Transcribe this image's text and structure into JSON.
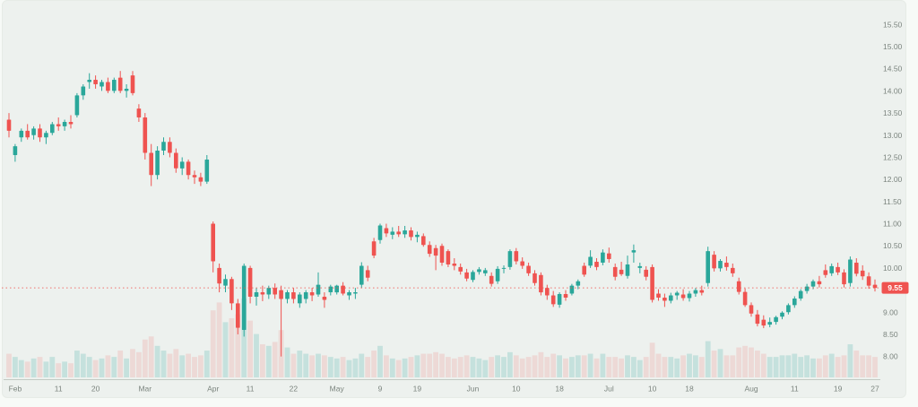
{
  "chart_data": {
    "type": "candlestick",
    "title": "",
    "legend_position": "none",
    "grid": false,
    "current_price": 9.55,
    "current_price_label": "9.55",
    "y_axis": {
      "side": "right",
      "min": 7.75,
      "max": 15.75,
      "ticks": [
        "15.50",
        "15.00",
        "14.50",
        "14.00",
        "13.50",
        "13.00",
        "12.50",
        "12.00",
        "11.50",
        "11.00",
        "10.50",
        "10.00",
        "9.00",
        "8.50",
        "8.00"
      ]
    },
    "x_axis": {
      "side": "bottom",
      "ticks": [
        {
          "label": "Feb",
          "i": 1
        },
        {
          "label": "11",
          "i": 8
        },
        {
          "label": "20",
          "i": 14
        },
        {
          "label": "Mar",
          "i": 22
        },
        {
          "label": "Apr",
          "i": 33
        },
        {
          "label": "11",
          "i": 39
        },
        {
          "label": "22",
          "i": 46
        },
        {
          "label": "May",
          "i": 53
        },
        {
          "label": "9",
          "i": 60
        },
        {
          "label": "19",
          "i": 66
        },
        {
          "label": "Jun",
          "i": 75
        },
        {
          "label": "10",
          "i": 82
        },
        {
          "label": "18",
          "i": 89
        },
        {
          "label": "Jul",
          "i": 97
        },
        {
          "label": "10",
          "i": 104
        },
        {
          "label": "18",
          "i": 110
        },
        {
          "label": "Aug",
          "i": 120
        },
        {
          "label": "11",
          "i": 127
        },
        {
          "label": "19",
          "i": 134
        },
        {
          "label": "27",
          "i": 140
        }
      ]
    },
    "series_name": "price",
    "candles_format": [
      "open",
      "high",
      "low",
      "close",
      "relative_volume"
    ],
    "candles": [
      [
        13.35,
        13.5,
        12.95,
        13.1,
        0.3
      ],
      [
        12.55,
        12.8,
        12.4,
        12.75,
        0.26
      ],
      [
        12.95,
        13.15,
        12.85,
        13.1,
        0.22
      ],
      [
        13.1,
        13.25,
        12.9,
        12.95,
        0.2
      ],
      [
        13.0,
        13.2,
        12.9,
        13.15,
        0.24
      ],
      [
        13.15,
        13.25,
        12.85,
        12.95,
        0.26
      ],
      [
        12.95,
        13.1,
        12.8,
        13.05,
        0.2
      ],
      [
        13.05,
        13.3,
        13.0,
        13.25,
        0.26
      ],
      [
        13.25,
        13.4,
        13.1,
        13.2,
        0.18
      ],
      [
        13.2,
        13.35,
        13.1,
        13.3,
        0.2
      ],
      [
        13.3,
        13.45,
        13.15,
        13.25,
        0.18
      ],
      [
        13.45,
        13.95,
        13.4,
        13.9,
        0.34
      ],
      [
        13.9,
        14.15,
        13.8,
        14.1,
        0.3
      ],
      [
        14.2,
        14.4,
        14.05,
        14.25,
        0.26
      ],
      [
        14.25,
        14.35,
        14.05,
        14.15,
        0.22
      ],
      [
        14.1,
        14.25,
        14.0,
        14.2,
        0.24
      ],
      [
        14.2,
        14.3,
        13.95,
        14.0,
        0.28
      ],
      [
        14.0,
        14.3,
        13.95,
        14.25,
        0.26
      ],
      [
        14.3,
        14.45,
        13.95,
        14.0,
        0.34
      ],
      [
        14.0,
        14.15,
        13.85,
        14.05,
        0.24
      ],
      [
        14.35,
        14.45,
        13.9,
        13.95,
        0.36
      ],
      [
        13.6,
        13.7,
        13.3,
        13.4,
        0.32
      ],
      [
        13.4,
        13.5,
        12.45,
        12.6,
        0.48
      ],
      [
        12.6,
        12.8,
        11.85,
        12.1,
        0.52
      ],
      [
        12.1,
        12.75,
        12.0,
        12.65,
        0.4
      ],
      [
        12.65,
        12.95,
        12.55,
        12.85,
        0.34
      ],
      [
        12.85,
        12.95,
        12.5,
        12.6,
        0.3
      ],
      [
        12.6,
        12.7,
        12.15,
        12.25,
        0.36
      ],
      [
        12.25,
        12.5,
        12.1,
        12.4,
        0.28
      ],
      [
        12.4,
        12.45,
        12.0,
        12.1,
        0.3
      ],
      [
        12.1,
        12.2,
        11.9,
        12.05,
        0.26
      ],
      [
        12.05,
        12.15,
        11.85,
        11.95,
        0.28
      ],
      [
        11.95,
        12.55,
        11.9,
        12.45,
        0.34
      ],
      [
        11.0,
        11.05,
        9.9,
        10.15,
        0.85
      ],
      [
        10.0,
        10.1,
        9.45,
        9.65,
        0.95
      ],
      [
        9.6,
        9.85,
        9.45,
        9.75,
        0.7
      ],
      [
        9.75,
        9.8,
        9.05,
        9.2,
        0.75
      ],
      [
        9.2,
        9.3,
        8.5,
        8.65,
        0.8
      ],
      [
        8.6,
        10.1,
        8.45,
        10.05,
        1.0
      ],
      [
        10.0,
        10.05,
        9.2,
        9.35,
        0.72
      ],
      [
        9.35,
        9.55,
        9.15,
        9.45,
        0.55
      ],
      [
        9.45,
        9.6,
        9.25,
        9.4,
        0.42
      ],
      [
        9.4,
        9.6,
        9.3,
        9.55,
        0.4
      ],
      [
        9.55,
        9.65,
        9.3,
        9.4,
        0.45
      ],
      [
        9.5,
        9.6,
        8.0,
        9.3,
        0.6
      ],
      [
        9.3,
        9.5,
        9.2,
        9.45,
        0.38
      ],
      [
        9.45,
        9.55,
        9.2,
        9.3,
        0.3
      ],
      [
        9.2,
        9.45,
        9.1,
        9.4,
        0.34
      ],
      [
        9.3,
        9.5,
        9.2,
        9.45,
        0.3
      ],
      [
        9.45,
        9.55,
        9.25,
        9.38,
        0.28
      ],
      [
        9.4,
        9.9,
        9.35,
        9.62,
        0.3
      ],
      [
        9.35,
        9.45,
        9.1,
        9.28,
        0.28
      ],
      [
        9.45,
        9.62,
        9.38,
        9.58,
        0.26
      ],
      [
        9.45,
        9.62,
        9.4,
        9.6,
        0.24
      ],
      [
        9.6,
        9.68,
        9.38,
        9.42,
        0.26
      ],
      [
        9.38,
        9.5,
        9.28,
        9.45,
        0.22
      ],
      [
        9.42,
        9.55,
        9.3,
        9.45,
        0.24
      ],
      [
        9.62,
        10.13,
        9.55,
        10.05,
        0.3
      ],
      [
        9.95,
        10.05,
        9.7,
        9.78,
        0.26
      ],
      [
        10.6,
        10.68,
        10.22,
        10.28,
        0.34
      ],
      [
        10.63,
        11.0,
        10.55,
        10.96,
        0.4
      ],
      [
        10.9,
        11.0,
        10.7,
        10.78,
        0.28
      ],
      [
        10.75,
        10.92,
        10.65,
        10.82,
        0.24
      ],
      [
        10.82,
        10.95,
        10.7,
        10.76,
        0.22
      ],
      [
        10.76,
        10.95,
        10.68,
        10.85,
        0.24
      ],
      [
        10.85,
        10.92,
        10.62,
        10.7,
        0.26
      ],
      [
        10.7,
        10.82,
        10.58,
        10.75,
        0.28
      ],
      [
        10.72,
        10.78,
        10.48,
        10.52,
        0.3
      ],
      [
        10.52,
        10.6,
        10.25,
        10.32,
        0.3
      ],
      [
        10.45,
        10.52,
        9.95,
        10.28,
        0.32
      ],
      [
        10.5,
        10.55,
        10.05,
        10.12,
        0.3
      ],
      [
        10.38,
        10.42,
        10.02,
        10.08,
        0.26
      ],
      [
        10.1,
        10.22,
        9.95,
        10.05,
        0.24
      ],
      [
        10.02,
        10.1,
        9.85,
        9.92,
        0.26
      ],
      [
        9.9,
        9.98,
        9.7,
        9.76,
        0.28
      ],
      [
        9.73,
        9.95,
        9.68,
        9.91,
        0.26
      ],
      [
        9.91,
        10.02,
        9.85,
        9.97,
        0.24
      ],
      [
        9.88,
        10.0,
        9.82,
        9.95,
        0.22
      ],
      [
        9.82,
        9.9,
        9.58,
        9.64,
        0.26
      ],
      [
        9.7,
        10.04,
        9.64,
        9.98,
        0.28
      ],
      [
        9.98,
        10.06,
        9.88,
        10.0,
        0.26
      ],
      [
        10.02,
        10.42,
        9.96,
        10.38,
        0.32
      ],
      [
        10.38,
        10.45,
        10.08,
        10.15,
        0.28
      ],
      [
        10.15,
        10.24,
        9.98,
        10.05,
        0.24
      ],
      [
        10.05,
        10.12,
        9.82,
        9.88,
        0.26
      ],
      [
        9.88,
        9.95,
        9.6,
        9.66,
        0.28
      ],
      [
        9.84,
        9.9,
        9.38,
        9.45,
        0.32
      ],
      [
        9.55,
        9.62,
        9.28,
        9.38,
        0.26
      ],
      [
        9.38,
        9.48,
        9.12,
        9.18,
        0.3
      ],
      [
        9.17,
        9.45,
        9.1,
        9.41,
        0.28
      ],
      [
        9.41,
        9.5,
        9.26,
        9.33,
        0.24
      ],
      [
        9.42,
        9.64,
        9.38,
        9.6,
        0.26
      ],
      [
        9.6,
        9.74,
        9.52,
        9.7,
        0.28
      ],
      [
        10.05,
        10.12,
        9.8,
        9.85,
        0.28
      ],
      [
        10.05,
        10.4,
        10.0,
        10.25,
        0.3
      ],
      [
        10.14,
        10.22,
        9.95,
        10.02,
        0.24
      ],
      [
        10.12,
        10.42,
        10.06,
        10.35,
        0.3
      ],
      [
        10.33,
        10.46,
        10.12,
        10.2,
        0.26
      ],
      [
        10.02,
        10.1,
        9.72,
        9.8,
        0.26
      ],
      [
        9.96,
        10.14,
        9.82,
        9.86,
        0.24
      ],
      [
        9.82,
        10.28,
        9.76,
        10.08,
        0.28
      ],
      [
        10.35,
        10.53,
        10.12,
        10.4,
        0.26
      ],
      [
        10.0,
        10.12,
        9.88,
        10.04,
        0.22
      ],
      [
        9.96,
        10.04,
        9.72,
        9.8,
        0.26
      ],
      [
        10.02,
        10.08,
        9.22,
        9.28,
        0.44
      ],
      [
        9.42,
        9.52,
        9.26,
        9.33,
        0.3
      ],
      [
        9.33,
        9.42,
        9.12,
        9.26,
        0.26
      ],
      [
        9.26,
        9.44,
        9.2,
        9.38,
        0.26
      ],
      [
        9.38,
        9.48,
        9.28,
        9.44,
        0.24
      ],
      [
        9.4,
        9.52,
        9.26,
        9.32,
        0.28
      ],
      [
        9.32,
        9.48,
        9.24,
        9.42,
        0.3
      ],
      [
        9.42,
        9.55,
        9.35,
        9.5,
        0.28
      ],
      [
        9.5,
        9.6,
        9.38,
        9.44,
        0.26
      ],
      [
        9.66,
        10.48,
        9.58,
        10.38,
        0.46
      ],
      [
        10.3,
        10.38,
        9.92,
        9.99,
        0.34
      ],
      [
        9.99,
        10.2,
        9.92,
        10.16,
        0.36
      ],
      [
        10.12,
        10.26,
        9.94,
        10.02,
        0.28
      ],
      [
        10.0,
        10.1,
        9.8,
        9.88,
        0.28
      ],
      [
        9.7,
        9.78,
        9.4,
        9.46,
        0.38
      ],
      [
        9.46,
        9.54,
        9.12,
        9.16,
        0.4
      ],
      [
        9.16,
        9.22,
        8.9,
        8.97,
        0.38
      ],
      [
        8.95,
        9.05,
        8.68,
        8.74,
        0.34
      ],
      [
        8.83,
        8.93,
        8.64,
        8.7,
        0.3
      ],
      [
        8.72,
        8.88,
        8.66,
        8.78,
        0.26
      ],
      [
        8.78,
        8.92,
        8.72,
        8.89,
        0.26
      ],
      [
        8.9,
        9.02,
        8.84,
        8.99,
        0.28
      ],
      [
        9.0,
        9.2,
        8.95,
        9.16,
        0.28
      ],
      [
        9.16,
        9.36,
        9.1,
        9.31,
        0.3
      ],
      [
        9.31,
        9.52,
        9.26,
        9.48,
        0.26
      ],
      [
        9.48,
        9.64,
        9.42,
        9.58,
        0.28
      ],
      [
        9.58,
        9.74,
        9.52,
        9.7,
        0.24
      ],
      [
        9.7,
        9.82,
        9.56,
        9.63,
        0.24
      ],
      [
        9.95,
        10.08,
        9.78,
        9.84,
        0.28
      ],
      [
        9.88,
        10.1,
        9.82,
        10.04,
        0.3
      ],
      [
        10.02,
        10.12,
        9.84,
        9.9,
        0.26
      ],
      [
        9.9,
        9.97,
        9.56,
        9.63,
        0.28
      ],
      [
        9.66,
        10.26,
        9.58,
        10.19,
        0.42
      ],
      [
        10.12,
        10.22,
        9.81,
        9.87,
        0.34
      ],
      [
        9.94,
        10.06,
        9.73,
        9.81,
        0.28
      ],
      [
        9.81,
        9.9,
        9.53,
        9.6,
        0.28
      ],
      [
        9.62,
        9.74,
        9.47,
        9.55,
        0.26
      ]
    ]
  },
  "colors": {
    "up_candle": "#2aa79a",
    "down_candle": "#ef5350",
    "up_volume": "rgba(42,167,154,0.20)",
    "down_volume": "rgba(239,83,80,0.15)",
    "price_line": "#ef5350",
    "price_badge_bg": "#ef5350",
    "price_badge_text": "#ffffff",
    "axis_text": "#7b847e",
    "axis_line": "#c3cac4",
    "chart_background": "#edf1ee",
    "page_background": "#f7faf7"
  }
}
